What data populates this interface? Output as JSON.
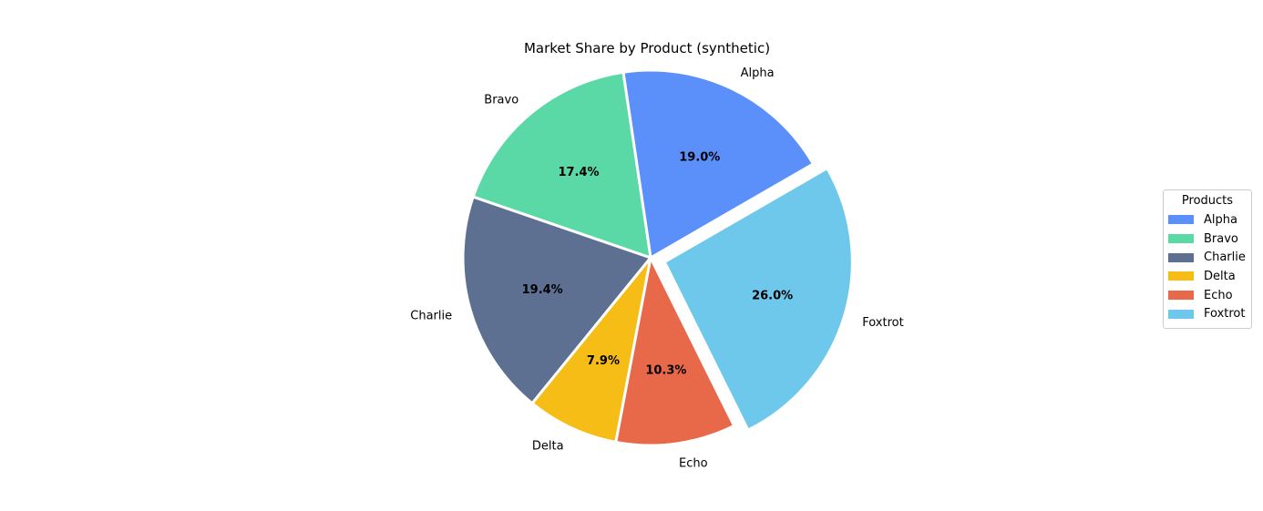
{
  "chart_data": {
    "type": "pie",
    "title": "Market Share by Product (synthetic)",
    "legend_title": "Products",
    "legend_position": "right",
    "slices": [
      {
        "label": "Alpha",
        "value": 19.0,
        "pct_label": "19.0%",
        "color": "#5b8ff9",
        "explode": false
      },
      {
        "label": "Bravo",
        "value": 17.4,
        "pct_label": "17.4%",
        "color": "#5ad8a6",
        "explode": false
      },
      {
        "label": "Charlie",
        "value": 19.4,
        "pct_label": "19.4%",
        "color": "#5d7092",
        "explode": false
      },
      {
        "label": "Delta",
        "value": 7.9,
        "pct_label": "7.9%",
        "color": "#f6bd16",
        "explode": false
      },
      {
        "label": "Echo",
        "value": 10.3,
        "pct_label": "10.3%",
        "color": "#e8684a",
        "explode": false
      },
      {
        "label": "Foxtrot",
        "value": 26.0,
        "pct_label": "26.0%",
        "color": "#6dc8ec",
        "explode": true
      }
    ]
  }
}
